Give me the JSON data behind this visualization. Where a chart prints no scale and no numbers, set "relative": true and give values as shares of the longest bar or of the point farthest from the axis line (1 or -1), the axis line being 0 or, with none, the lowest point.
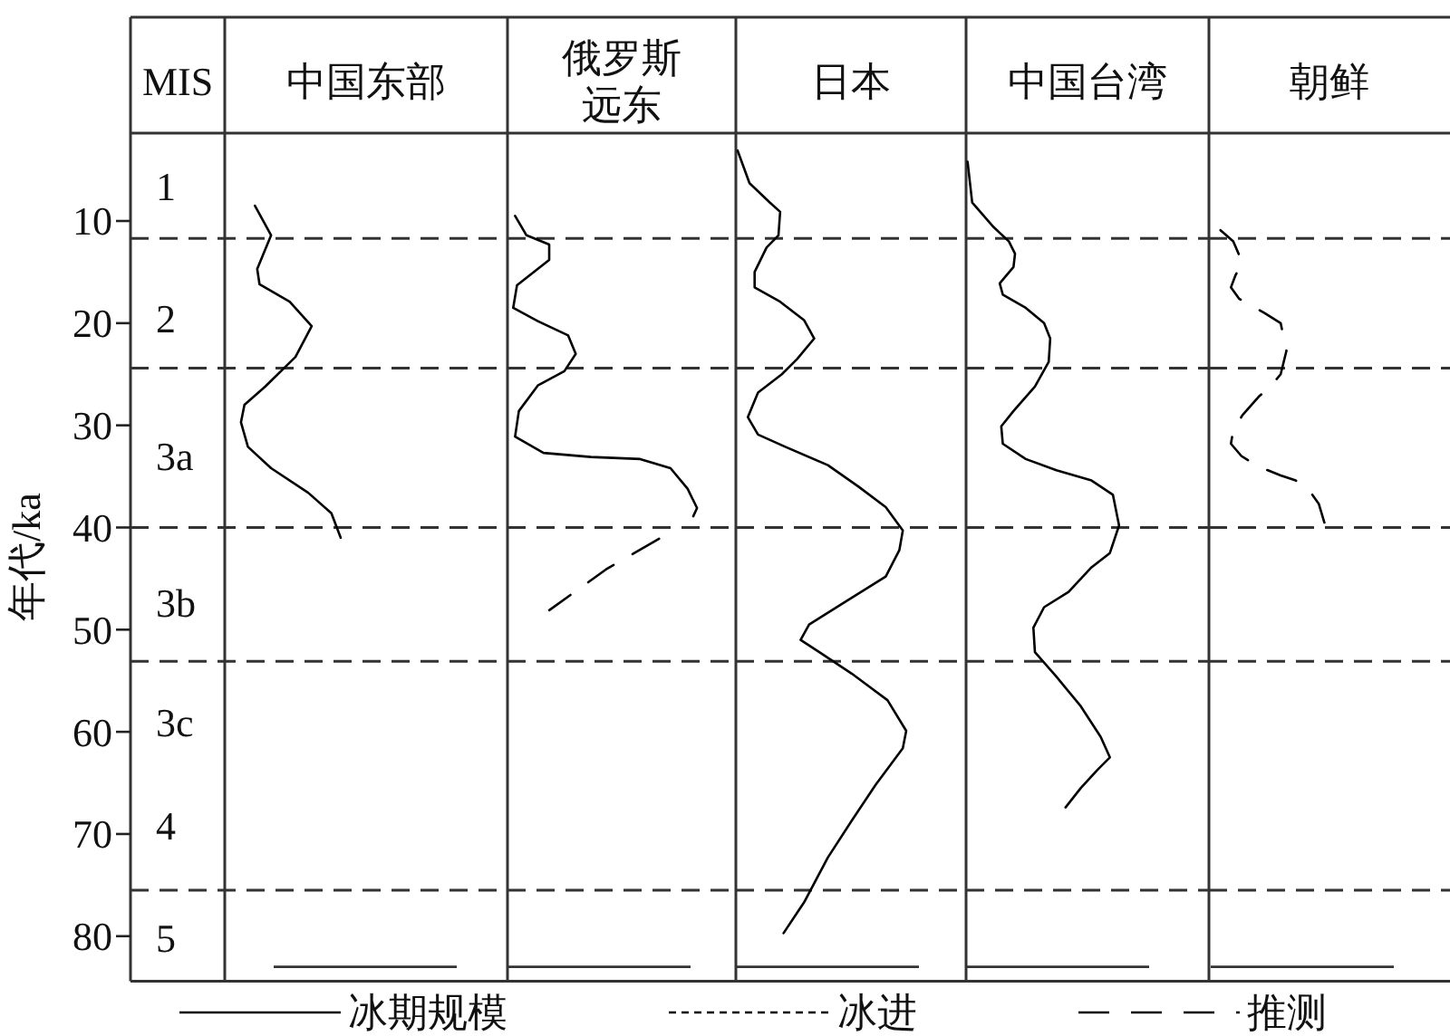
{
  "chart_data": [
    {
      "type": "line",
      "title": "中国东部",
      "orientation": "horizontal",
      "relative": true,
      "ylabel": "年代/ka",
      "ylim": [
        84.4,
        1.4
      ],
      "yticks": [
        10,
        20,
        30,
        40,
        50,
        60,
        70,
        80
      ],
      "tick_labels": "y",
      "legend": "bottom",
      "annotations": [
        "MIS",
        "1",
        "2",
        "3a",
        "3b",
        "3c",
        "4",
        "5"
      ],
      "ref_lines": [
        {
          "axis": "y",
          "value": 11.7,
          "line_style": "dashed"
        },
        {
          "axis": "y",
          "value": 24.4,
          "line_style": "dashed"
        },
        {
          "axis": "y",
          "value": 40,
          "line_style": "dashed"
        },
        {
          "axis": "y",
          "value": 53.1,
          "line_style": "dashed"
        },
        {
          "axis": "y",
          "value": 75.5,
          "line_style": "dashed"
        },
        {
          "axis": "y",
          "value": 83,
          "line_style": "solid"
        }
      ],
      "series": [
        {
          "name": "冰期规模",
          "color": "#000000",
          "line_style": "solid",
          "x": [
            8.5,
            11.4,
            14.7,
            16.2,
            17.9,
            20.3,
            23.3,
            26.2,
            28.0,
            29.7,
            32.1,
            34.2,
            36.6,
            38.6,
            41.0
          ],
          "values": [
            0.26,
            0.4,
            0.28,
            0.3,
            0.56,
            0.75,
            0.61,
            0.35,
            0.17,
            0.14,
            0.2,
            0.4,
            0.72,
            0.92,
            1.0
          ]
        }
      ]
    },
    {
      "type": "line",
      "title": "俄罗斯远东",
      "orientation": "horizontal",
      "relative": true,
      "ylim": [
        84.4,
        1.4
      ],
      "tick_labels": false,
      "legend": "bottom",
      "ref_lines": [
        {
          "axis": "y",
          "value": 11.7,
          "line_style": "dashed"
        },
        {
          "axis": "y",
          "value": 24.4,
          "line_style": "dashed"
        },
        {
          "axis": "y",
          "value": 40,
          "line_style": "dashed"
        },
        {
          "axis": "y",
          "value": 53.1,
          "line_style": "dashed"
        },
        {
          "axis": "y",
          "value": 75.5,
          "line_style": "dashed"
        },
        {
          "axis": "y",
          "value": 83,
          "line_style": "solid"
        }
      ],
      "series": [
        {
          "name": "冰期规模",
          "color": "#000000",
          "line_style": "solid",
          "x": [
            9.5,
            11.4,
            12.3,
            13.8,
            16.3,
            18.5,
            19.8,
            21.2,
            23.0,
            24.7,
            26.1,
            28.6,
            31.1,
            32.7,
            33.1,
            33.3,
            34.2,
            36.2,
            38.1,
            38.9
          ],
          "values": [
            0.04,
            0.1,
            0.22,
            0.22,
            0.05,
            0.03,
            0.16,
            0.32,
            0.36,
            0.3,
            0.16,
            0.06,
            0.04,
            0.19,
            0.44,
            0.7,
            0.86,
            0.95,
            1.0,
            0.98
          ]
        },
        {
          "name": "冰进",
          "color": "#000000",
          "line_style": "dotted"
        },
        {
          "name": "推测",
          "color": "#000000",
          "line_style": "dashed",
          "x": [
            41.1,
            44.1,
            48.1
          ],
          "values": [
            0.8,
            0.52,
            0.22
          ]
        }
      ]
    },
    {
      "type": "line",
      "title": "日本",
      "orientation": "horizontal",
      "relative": true,
      "ylim": [
        84.4,
        1.4
      ],
      "tick_labels": false,
      "legend": "bottom",
      "ref_lines": [
        {
          "axis": "y",
          "value": 11.7,
          "line_style": "dashed"
        },
        {
          "axis": "y",
          "value": 24.4,
          "line_style": "dashed"
        },
        {
          "axis": "y",
          "value": 40,
          "line_style": "dashed"
        },
        {
          "axis": "y",
          "value": 53.1,
          "line_style": "dashed"
        },
        {
          "axis": "y",
          "value": 75.5,
          "line_style": "dashed"
        },
        {
          "axis": "y",
          "value": 83,
          "line_style": "solid"
        }
      ],
      "series": [
        {
          "name": "冰期规模",
          "color": "#000000",
          "line_style": "solid",
          "x": [
            3.1,
            6.3,
            8.2,
            9.1,
            11.4,
            12.6,
            15.0,
            16.5,
            17.9,
            19.7,
            21.5,
            23.5,
            25.0,
            26.8,
            29.2,
            30.9,
            32.1,
            33.9,
            36.0,
            38.0,
            40.3,
            42.2,
            44.8,
            47.2,
            49.5,
            51.0,
            52.2,
            54.3,
            56.9,
            59.9,
            61.6,
            65.2,
            68.7,
            72.3,
            76.7,
            79.7
          ],
          "values": [
            0.01,
            0.08,
            0.2,
            0.26,
            0.25,
            0.18,
            0.11,
            0.11,
            0.26,
            0.4,
            0.46,
            0.36,
            0.27,
            0.13,
            0.07,
            0.13,
            0.29,
            0.54,
            0.72,
            0.88,
            0.98,
            0.96,
            0.88,
            0.65,
            0.43,
            0.38,
            0.49,
            0.68,
            0.89,
            1.0,
            0.98,
            0.82,
            0.68,
            0.54,
            0.4,
            0.28
          ]
        }
      ]
    },
    {
      "type": "line",
      "title": "中国台湾",
      "orientation": "horizontal",
      "relative": true,
      "ylim": [
        84.4,
        1.4
      ],
      "tick_labels": false,
      "legend": "bottom",
      "ref_lines": [
        {
          "axis": "y",
          "value": 11.7,
          "line_style": "dashed"
        },
        {
          "axis": "y",
          "value": 24.4,
          "line_style": "dashed"
        },
        {
          "axis": "y",
          "value": 40,
          "line_style": "dashed"
        },
        {
          "axis": "y",
          "value": 53.1,
          "line_style": "dashed"
        },
        {
          "axis": "y",
          "value": 75.5,
          "line_style": "dashed"
        },
        {
          "axis": "y",
          "value": 83,
          "line_style": "solid"
        }
      ],
      "series": [
        {
          "name": "冰期规模",
          "color": "#000000",
          "line_style": "solid",
          "x": [
            4.2,
            8.2,
            10.6,
            12.0,
            13.2,
            14.5,
            16.1,
            17.2,
            18.5,
            20.0,
            21.5,
            23.8,
            26.2,
            28.6,
            30.1,
            31.8,
            33.3,
            34.4,
            35.4,
            36.8,
            39.8,
            42.5,
            43.9,
            46.3,
            47.8,
            49.8,
            52.2,
            54.6,
            57.5,
            60.5,
            62.5,
            63.7,
            65.5,
            67.4
          ],
          "values": [
            0.01,
            0.04,
            0.18,
            0.28,
            0.32,
            0.31,
            0.22,
            0.24,
            0.39,
            0.51,
            0.55,
            0.54,
            0.45,
            0.31,
            0.23,
            0.24,
            0.39,
            0.59,
            0.82,
            0.96,
            1.0,
            0.94,
            0.82,
            0.67,
            0.51,
            0.44,
            0.45,
            0.59,
            0.75,
            0.88,
            0.94,
            0.86,
            0.75,
            0.65
          ]
        }
      ]
    },
    {
      "type": "line",
      "title": "朝鲜",
      "orientation": "horizontal",
      "relative": true,
      "ylim": [
        84.4,
        1.4
      ],
      "tick_labels": false,
      "legend": "bottom",
      "ref_lines": [
        {
          "axis": "y",
          "value": 11.7,
          "line_style": "dashed"
        },
        {
          "axis": "y",
          "value": 24.4,
          "line_style": "dashed"
        },
        {
          "axis": "y",
          "value": 40,
          "line_style": "dashed"
        },
        {
          "axis": "y",
          "value": 53.1,
          "line_style": "dashed"
        },
        {
          "axis": "y",
          "value": 75.5,
          "line_style": "dashed"
        },
        {
          "axis": "y",
          "value": 83,
          "line_style": "solid"
        }
      ],
      "series": [
        {
          "name": "推测",
          "color": "#000000",
          "line_style": "dashed",
          "x": [
            10.9,
            12.0,
            14.1,
            15.3,
            16.5,
            17.6,
            19.0,
            20.0,
            22.7,
            25.0,
            26.2,
            27.2,
            29.0,
            30.5,
            31.8,
            33.0,
            34.0,
            34.9,
            35.4,
            36.1,
            37.7,
            39.6
          ],
          "values": [
            0.1,
            0.21,
            0.29,
            0.23,
            0.19,
            0.26,
            0.48,
            0.62,
            0.67,
            0.62,
            0.53,
            0.43,
            0.29,
            0.21,
            0.19,
            0.28,
            0.42,
            0.62,
            0.75,
            0.85,
            0.95,
            1.0
          ]
        }
      ]
    }
  ]
}
